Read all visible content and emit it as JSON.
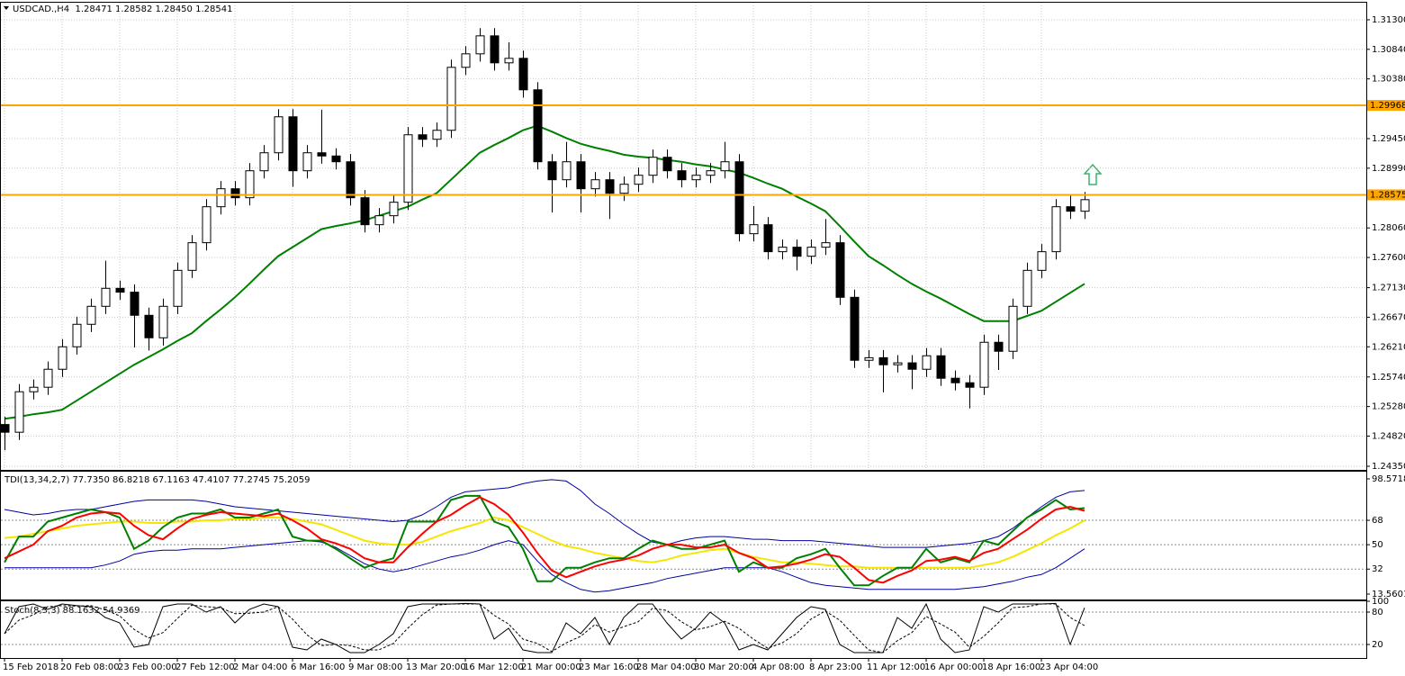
{
  "chart_data": [
    {
      "type": "candlestick",
      "title": "USDCAD.,H4  1.28471 1.28582 1.28450 1.28541",
      "categories": [
        "15 Feb 2018",
        null,
        null,
        null,
        "20 Feb 08:00",
        null,
        null,
        null,
        "23 Feb 00:00",
        null,
        null,
        null,
        "27 Feb 12:00",
        null,
        null,
        null,
        "2 Mar 04:00",
        null,
        null,
        null,
        "6 Mar 16:00",
        null,
        null,
        null,
        "9 Mar 08:00",
        null,
        null,
        null,
        "13 Mar 20:00",
        null,
        null,
        null,
        "16 Mar 12:00",
        null,
        null,
        null,
        "21 Mar 00:00",
        null,
        null,
        null,
        "23 Mar 16:00",
        null,
        null,
        null,
        "28 Mar 04:00",
        null,
        null,
        null,
        "30 Mar 20:00",
        null,
        null,
        null,
        "4 Apr 08:00",
        null,
        null,
        null,
        "8 Apr 23:00",
        null,
        null,
        null,
        "11 Apr 12:00",
        null,
        null,
        null,
        "16 Apr 00:00",
        null,
        null,
        null,
        "18 Apr 16:00",
        null,
        null,
        null,
        "23 Apr 04:00",
        null,
        null,
        null
      ],
      "open": [
        1.25,
        1.2488,
        1.2551,
        1.2558,
        1.2586,
        1.2621,
        1.2656,
        1.2684,
        1.2712,
        1.2706,
        1.267,
        1.2635,
        1.2684,
        1.274,
        1.2783,
        1.2839,
        1.2867,
        1.2853,
        1.2895,
        1.2923,
        1.2979,
        1.2895,
        1.2923,
        1.2918,
        1.2909,
        1.2853,
        1.2811,
        1.2825,
        1.2846,
        1.2951,
        1.2944,
        1.2958,
        1.3056,
        1.3077,
        1.3105,
        1.3063,
        1.307,
        1.3021,
        1.2909,
        1.2881,
        1.2909,
        1.2867,
        1.2881,
        1.286,
        1.2874,
        1.2888,
        1.2916,
        1.2895,
        1.2881,
        1.2888,
        1.2895,
        1.2909,
        1.2797,
        1.2811,
        1.2769,
        1.2776,
        1.2762,
        1.2776,
        1.2783,
        1.2698,
        1.26,
        1.2604,
        1.2593,
        1.2596,
        1.2586,
        1.2607,
        1.2572,
        1.2565,
        1.2558,
        1.2628,
        1.2614,
        1.2684,
        1.274,
        1.2769,
        1.2839,
        1.2832
      ],
      "high": [
        1.2512,
        1.2563,
        1.257,
        1.2598,
        1.2633,
        1.2668,
        1.2696,
        1.2755,
        1.2724,
        1.2718,
        1.2682,
        1.2696,
        1.2752,
        1.2795,
        1.2851,
        1.2879,
        1.2879,
        1.2907,
        1.2935,
        1.2991,
        1.2991,
        1.2935,
        1.299,
        1.293,
        1.2921,
        1.2865,
        1.2837,
        1.2858,
        1.2963,
        1.2963,
        1.297,
        1.3068,
        1.3089,
        1.3117,
        1.3117,
        1.3095,
        1.3082,
        1.3033,
        1.2921,
        1.294,
        1.2921,
        1.2893,
        1.2893,
        1.2886,
        1.29,
        1.2928,
        1.2928,
        1.2907,
        1.29,
        1.2907,
        1.294,
        1.2921,
        1.284,
        1.2823,
        1.2788,
        1.2788,
        1.2788,
        1.282,
        1.2795,
        1.271,
        1.2616,
        1.2616,
        1.2608,
        1.2608,
        1.2619,
        1.2619,
        1.2584,
        1.2577,
        1.264,
        1.264,
        1.2696,
        1.2752,
        1.2781,
        1.2851,
        1.2858,
        1.2862
      ],
      "low": [
        1.246,
        1.2476,
        1.2539,
        1.2546,
        1.2574,
        1.2609,
        1.2644,
        1.2672,
        1.2694,
        1.262,
        1.2615,
        1.2623,
        1.2672,
        1.2728,
        1.2771,
        1.2827,
        1.2841,
        1.2841,
        1.2883,
        1.2911,
        1.287,
        1.2883,
        1.2906,
        1.2897,
        1.2841,
        1.2799,
        1.2799,
        1.2813,
        1.2834,
        1.2932,
        1.2932,
        1.2946,
        1.3044,
        1.3065,
        1.3051,
        1.3051,
        1.3009,
        1.2897,
        1.283,
        1.2869,
        1.283,
        1.2855,
        1.282,
        1.2848,
        1.2862,
        1.2876,
        1.2883,
        1.2869,
        1.2869,
        1.2876,
        1.2883,
        1.2785,
        1.2785,
        1.2757,
        1.2757,
        1.274,
        1.275,
        1.2764,
        1.2686,
        1.2588,
        1.2588,
        1.255,
        1.2581,
        1.2555,
        1.2574,
        1.256,
        1.2553,
        1.2525,
        1.2546,
        1.2585,
        1.2602,
        1.2672,
        1.2728,
        1.2757,
        1.282,
        1.282
      ],
      "close": [
        1.2488,
        1.2551,
        1.2558,
        1.2586,
        1.2621,
        1.2656,
        1.2684,
        1.2712,
        1.2706,
        1.267,
        1.2635,
        1.2684,
        1.274,
        1.2783,
        1.2839,
        1.2867,
        1.2853,
        1.2895,
        1.2923,
        1.2979,
        1.2895,
        1.2923,
        1.2918,
        1.2909,
        1.2853,
        1.2811,
        1.2825,
        1.2846,
        1.2951,
        1.2944,
        1.2958,
        1.3056,
        1.3077,
        1.3105,
        1.3063,
        1.307,
        1.3021,
        1.2909,
        1.2881,
        1.2909,
        1.2867,
        1.2881,
        1.286,
        1.2874,
        1.2888,
        1.2916,
        1.2895,
        1.2881,
        1.2888,
        1.2895,
        1.2909,
        1.2797,
        1.2811,
        1.2769,
        1.2776,
        1.2762,
        1.2776,
        1.2783,
        1.2698,
        1.26,
        1.2604,
        1.2593,
        1.2596,
        1.2586,
        1.2607,
        1.2572,
        1.2565,
        1.2558,
        1.2628,
        1.2614,
        1.2684,
        1.274,
        1.2769,
        1.2839,
        1.2832,
        1.285
      ],
      "overlay": {
        "color": "#008000",
        "values": [
          1.2509,
          1.2512,
          1.2516,
          1.2519,
          1.2523,
          1.2537,
          1.2551,
          1.2565,
          1.2579,
          1.2593,
          1.2605,
          1.2617,
          1.263,
          1.2642,
          1.2661,
          1.2679,
          1.2698,
          1.2719,
          1.2741,
          1.2762,
          1.2776,
          1.279,
          1.2804,
          1.2809,
          1.2813,
          1.2818,
          1.2825,
          1.2832,
          1.2839,
          1.285,
          1.286,
          1.2881,
          1.2902,
          1.2923,
          1.2935,
          1.2946,
          1.2958,
          1.2965,
          1.2956,
          1.2946,
          1.2937,
          1.2931,
          1.2926,
          1.292,
          1.2917,
          1.2915,
          1.2912,
          1.2909,
          1.2905,
          1.2902,
          1.2897,
          1.2892,
          1.2884,
          1.2875,
          1.2867,
          1.2855,
          1.2844,
          1.2832,
          1.2809,
          1.2785,
          1.2762,
          1.2748,
          1.2733,
          1.2719,
          1.2707,
          1.2696,
          1.2684,
          1.2672,
          1.2661,
          1.2661,
          1.2661,
          1.2669,
          1.2677,
          1.2691,
          1.2705,
          1.2719
        ]
      },
      "hlines": [
        {
          "value": 1.29968,
          "label": "1.29968"
        },
        {
          "value": 1.28575,
          "label": "1.28575"
        }
      ],
      "hline_color": "#ffa500",
      "ylim": [
        1.24308,
        1.31566
      ],
      "yticks": [
        {
          "value": 1.313,
          "label": "1.31300"
        },
        {
          "value": 1.3084,
          "label": "1.30840"
        },
        {
          "value": 1.3038,
          "label": "1.30380"
        },
        {
          "value": 1.2945,
          "label": "1.29450"
        },
        {
          "value": 1.2899,
          "label": "1.28990"
        },
        {
          "value": 1.2806,
          "label": "1.28060"
        },
        {
          "value": 1.276,
          "label": "1.27600"
        },
        {
          "value": 1.2713,
          "label": "1.27130"
        },
        {
          "value": 1.2667,
          "label": "1.26670"
        },
        {
          "value": 1.2621,
          "label": "1.26210"
        },
        {
          "value": 1.2574,
          "label": "1.25740"
        },
        {
          "value": 1.2528,
          "label": "1.25280"
        },
        {
          "value": 1.2482,
          "label": "1.24820"
        },
        {
          "value": 1.2435,
          "label": "1.24350"
        }
      ],
      "grid": true
    },
    {
      "type": "line",
      "title": "TDI(13,34,2,7) 77.7350 86.8218 67.1163 47.4107 77.2745 75.2059",
      "ylim": [
        13.5601,
        98.5718
      ],
      "yticks": [
        98.5718,
        68,
        50,
        32,
        13.5601
      ],
      "grid": true,
      "series": [
        {
          "color": "#0000a0",
          "width": 1,
          "values": [
            76,
            74,
            72,
            73,
            75,
            76,
            76,
            78,
            80,
            82,
            83,
            83,
            83,
            83,
            82,
            80,
            78,
            77,
            76,
            75,
            74,
            73,
            72,
            71,
            70,
            69,
            68,
            67,
            68,
            72,
            78,
            85,
            89,
            90,
            91,
            92,
            95,
            97,
            98,
            97,
            90,
            80,
            73,
            65,
            58,
            52,
            50,
            53,
            55,
            56,
            56,
            55,
            54,
            54,
            53,
            53,
            53,
            52,
            51,
            50,
            49,
            48,
            48,
            48,
            48,
            49,
            50,
            51,
            53,
            56,
            62,
            70,
            78,
            85,
            89,
            90
          ]
        },
        {
          "color": "#0000a0",
          "width": 1,
          "values": [
            33,
            33,
            33,
            33,
            33,
            33,
            33,
            35,
            38,
            43,
            45,
            46,
            46,
            47,
            47,
            47,
            48,
            49,
            50,
            51,
            52,
            53,
            52,
            48,
            42,
            36,
            32,
            30,
            32,
            35,
            38,
            41,
            43,
            46,
            50,
            53,
            50,
            38,
            28,
            22,
            17,
            15,
            16,
            18,
            20,
            22,
            25,
            27,
            29,
            31,
            33,
            33,
            33,
            33,
            30,
            26,
            22,
            20,
            19,
            18,
            17,
            17,
            17,
            17,
            17,
            17,
            17,
            18,
            19,
            21,
            23,
            26,
            28,
            33,
            40,
            47
          ]
        },
        {
          "color": "#f5e600",
          "width": 2,
          "values": [
            55,
            56,
            58,
            60,
            62,
            64,
            65,
            66,
            67,
            67,
            66,
            66,
            67,
            67,
            68,
            68,
            69,
            69,
            70,
            70,
            69,
            67,
            65,
            61,
            57,
            53,
            51,
            50,
            50,
            52,
            56,
            60,
            63,
            66,
            70,
            68,
            63,
            58,
            53,
            49,
            47,
            44,
            42,
            40,
            38,
            37,
            39,
            42,
            44,
            46,
            47,
            44,
            41,
            39,
            37,
            37,
            36,
            35,
            34,
            34,
            33,
            33,
            33,
            33,
            33,
            33,
            33,
            33,
            35,
            37,
            41,
            46,
            51,
            57,
            62,
            68
          ]
        },
        {
          "color": "#008000",
          "width": 2,
          "values": [
            37,
            56,
            56,
            67,
            70,
            73,
            76,
            74,
            70,
            47,
            53,
            63,
            70,
            73,
            73,
            76,
            70,
            70,
            73,
            76,
            56,
            53,
            53,
            47,
            40,
            33,
            37,
            40,
            67,
            67,
            67,
            83,
            86,
            86,
            67,
            63,
            47,
            23,
            23,
            33,
            33,
            37,
            40,
            40,
            47,
            53,
            50,
            47,
            47,
            50,
            53,
            30,
            37,
            33,
            33,
            40,
            43,
            47,
            33,
            20,
            20,
            27,
            33,
            33,
            47,
            37,
            40,
            37,
            53,
            50,
            60,
            70,
            76,
            83,
            76,
            77
          ]
        },
        {
          "color": "#ff0000",
          "width": 2,
          "values": [
            40,
            45,
            50,
            60,
            64,
            70,
            73,
            74,
            73,
            64,
            57,
            54,
            62,
            69,
            72,
            74,
            73,
            72,
            71,
            73,
            68,
            62,
            54,
            51,
            47,
            40,
            37,
            37,
            48,
            58,
            67,
            72,
            79,
            85,
            80,
            72,
            59,
            44,
            31,
            26,
            30,
            34,
            37,
            39,
            42,
            47,
            50,
            50,
            48,
            48,
            50,
            44,
            40,
            33,
            34,
            36,
            39,
            43,
            41,
            33,
            24,
            22,
            27,
            31,
            38,
            39,
            41,
            38,
            44,
            47,
            54,
            61,
            69,
            76,
            78,
            75
          ]
        }
      ]
    },
    {
      "type": "line",
      "title": "Stoch(8,3,3) 88.1632 54.9369",
      "ylim": [
        0,
        100
      ],
      "yticks": [
        20,
        80,
        100
      ],
      "grid": true,
      "series": [
        {
          "color": "#000000",
          "width": 1,
          "dashed": false,
          "values": [
            40,
            90,
            95,
            85,
            95,
            92,
            90,
            70,
            60,
            15,
            20,
            90,
            95,
            95,
            80,
            90,
            60,
            85,
            95,
            90,
            15,
            10,
            30,
            20,
            5,
            5,
            20,
            40,
            90,
            95,
            95,
            95,
            96,
            95,
            30,
            50,
            10,
            5,
            5,
            60,
            40,
            70,
            20,
            70,
            95,
            95,
            60,
            30,
            50,
            80,
            60,
            10,
            20,
            10,
            40,
            70,
            90,
            85,
            20,
            5,
            5,
            5,
            70,
            50,
            95,
            30,
            5,
            10,
            90,
            80,
            95,
            95,
            95,
            96,
            20,
            88
          ]
        },
        {
          "color": "#000000",
          "width": 1,
          "dashed": true,
          "values": [
            40,
            65,
            75,
            90,
            92,
            91,
            92,
            84,
            73,
            48,
            32,
            42,
            68,
            93,
            90,
            88,
            77,
            78,
            80,
            90,
            67,
            38,
            18,
            20,
            18,
            10,
            10,
            22,
            50,
            75,
            93,
            95,
            95,
            95,
            74,
            58,
            30,
            22,
            7,
            23,
            35,
            57,
            43,
            53,
            62,
            87,
            83,
            62,
            47,
            53,
            63,
            50,
            30,
            13,
            23,
            40,
            67,
            82,
            65,
            37,
            10,
            5,
            27,
            42,
            72,
            58,
            43,
            15,
            35,
            60,
            88,
            90,
            95,
            95,
            70,
            55
          ]
        }
      ]
    }
  ]
}
